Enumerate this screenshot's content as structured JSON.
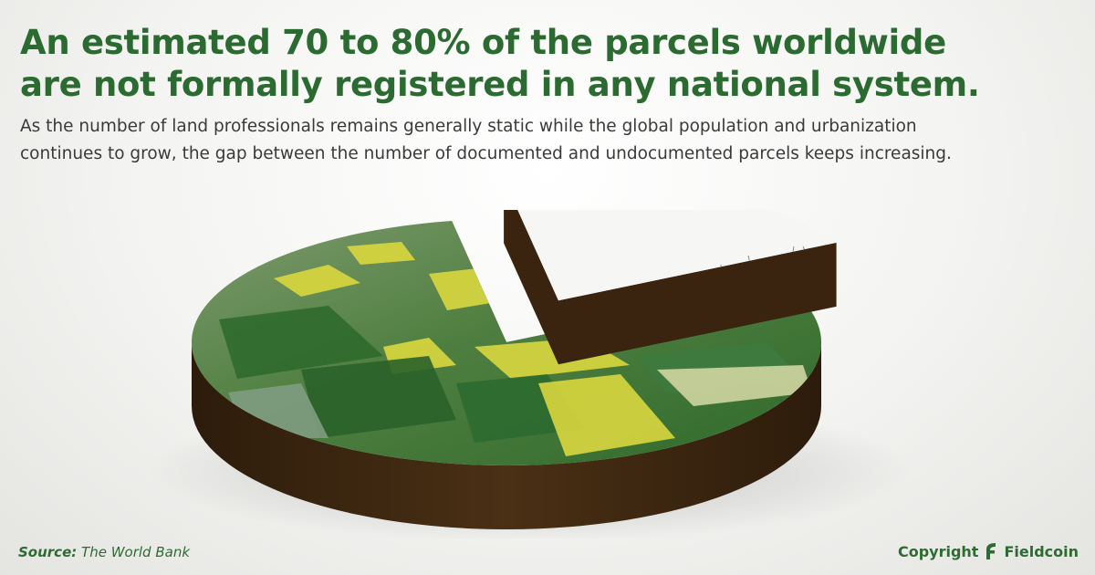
{
  "headline": {
    "line1": "An estimated 70 to 80% of the parcels worldwide",
    "line2": "are not formally registered in any national system."
  },
  "subtitle": {
    "line1": "As the number of land professionals remains generally static while the global population and urbanization",
    "line2": "continues to grow, the gap between the number of documented and undocumented parcels keeps increasing."
  },
  "source": {
    "label": "Source:",
    "value": "The World Bank"
  },
  "footer": {
    "copyright": "Copyright",
    "brand": "Fieldcoin"
  },
  "colors": {
    "headline": "#2b6a30",
    "field_green": "#3f7a3a",
    "field_yellow": "#d8d640",
    "earth": "#3e2710",
    "map_white": "#f6f6f4"
  },
  "chart_data": {
    "type": "pie",
    "style": "3d-exploded",
    "slices": [
      {
        "label": "",
        "value": 80,
        "fill": "aerial-farmland"
      },
      {
        "label": "",
        "value": 20,
        "fill": "cadastral-map",
        "exploded": true
      }
    ]
  }
}
